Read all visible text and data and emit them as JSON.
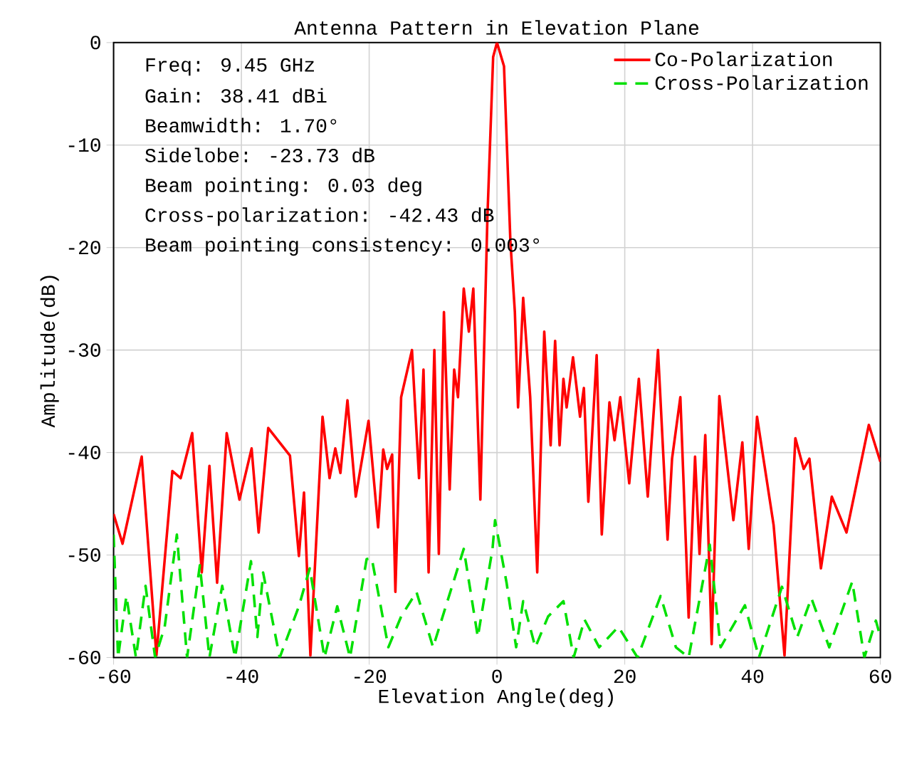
{
  "chart_data": {
    "type": "line",
    "title": "Antenna Pattern in Elevation Plane",
    "xlabel": "Elevation Angle(deg)",
    "ylabel": "Amplitude(dB)",
    "annotations": [
      "Freq: 9.45 GHz",
      "Gain: 38.41 dBi",
      "Beamwidth: 1.70°",
      "Sidelobe: -23.73 dB",
      "Beam pointing: 0.03 deg",
      "Cross-polarization: -42.43 dB",
      "Beam pointing consistency: 0.003°"
    ],
    "xlim": [
      -60,
      60
    ],
    "ylim": [
      -60,
      0
    ],
    "xticks": [
      -60,
      -40,
      -20,
      0,
      20,
      40,
      60
    ],
    "yticks": [
      -60,
      -50,
      -40,
      -30,
      -20,
      -10,
      0
    ],
    "grid": true,
    "legend": "top right",
    "series": [
      {
        "name": "Co-Polarization",
        "color": "#ff0000",
        "line_style": "solid",
        "x": [
          -60,
          -58.6,
          -55.6,
          -53.3,
          -50.8,
          -49.5,
          -47.7,
          -46.2,
          -45.0,
          -43.8,
          -42.3,
          -40.3,
          -38.4,
          -37.3,
          -35.8,
          -32.4,
          -31.0,
          -30.2,
          -29.2,
          -27.3,
          -26.2,
          -25.3,
          -24.5,
          -23.4,
          -22.1,
          -20.1,
          -18.6,
          -17.8,
          -17.2,
          -16.4,
          -15.9,
          -15.0,
          -13.3,
          -12.2,
          -11.5,
          -10.7,
          -9.8,
          -9.1,
          -8.3,
          -7.4,
          -6.7,
          -6.1,
          -5.2,
          -4.4,
          -3.7,
          -2.6,
          -1.5,
          -0.6,
          0.0,
          1.1,
          2.1,
          2.8,
          3.3,
          4.1,
          5.2,
          6.3,
          7.4,
          8.4,
          9.1,
          9.8,
          10.4,
          10.9,
          11.9,
          13.0,
          13.6,
          14.3,
          15.6,
          16.4,
          17.6,
          18.4,
          19.3,
          20.7,
          22.2,
          23.6,
          25.2,
          26.7,
          27.4,
          28.7,
          30.0,
          31.0,
          31.7,
          32.6,
          33.6,
          34.8,
          37.0,
          38.4,
          39.4,
          40.7,
          43.3,
          45.0,
          46.7,
          48.0,
          48.9,
          50.7,
          52.4,
          54.7,
          58.2,
          60
        ],
        "values": [
          -46,
          -48.9,
          -40.4,
          -59.8,
          -41.8,
          -42.5,
          -38.1,
          -51.7,
          -41.3,
          -52.7,
          -38.1,
          -44.6,
          -39.6,
          -47.8,
          -37.6,
          -40.3,
          -50.1,
          -43.9,
          -59.8,
          -36.5,
          -42.5,
          -39.6,
          -42,
          -34.9,
          -44.3,
          -36.9,
          -47.3,
          -39.7,
          -41.6,
          -40.2,
          -53.6,
          -34.6,
          -30,
          -42.5,
          -31.9,
          -51.7,
          -30,
          -49.9,
          -26.3,
          -43.6,
          -31.9,
          -34.6,
          -24,
          -28.2,
          -24,
          -44.6,
          -17.1,
          -1.4,
          0,
          -2.3,
          -19.4,
          -26.3,
          -35.6,
          -24.9,
          -34.6,
          -51.7,
          -28.2,
          -39.3,
          -29.1,
          -39.3,
          -32.8,
          -35.6,
          -30.7,
          -36.5,
          -33.7,
          -44.8,
          -30.5,
          -48,
          -35.1,
          -38.8,
          -34.6,
          -43,
          -32.8,
          -44.3,
          -30,
          -48.5,
          -40.6,
          -34.6,
          -56.1,
          -40.4,
          -49.9,
          -38.3,
          -58.7,
          -34.5,
          -46.6,
          -39,
          -49.4,
          -36.5,
          -47.1,
          -59.8,
          -38.6,
          -41.6,
          -40.6,
          -51.3,
          -44.3,
          -47.8,
          -37.3,
          -40.9
        ]
      },
      {
        "name": "Cross-Polarization",
        "color": "#00e000",
        "line_style": "dashed",
        "x": [
          -60,
          -59.3,
          -58,
          -56.5,
          -55,
          -53.5,
          -52,
          -50.1,
          -48.5,
          -46.5,
          -45,
          -43,
          -41,
          -38.5,
          -37.5,
          -36.6,
          -34,
          -31,
          -29.3,
          -27,
          -25,
          -23,
          -20.4,
          -19.6,
          -17,
          -15,
          -12.6,
          -10,
          -8,
          -5.2,
          -3,
          -0.7,
          -0.3,
          1.5,
          3,
          4.1,
          6,
          8,
          10.4,
          12,
          13.7,
          16,
          19,
          22,
          25.6,
          28,
          30,
          33.3,
          35,
          38.8,
          41,
          44.6,
          47,
          49.2,
          52,
          55.6,
          57.5,
          59.3,
          60
        ],
        "values": [
          -48,
          -60,
          -54,
          -60,
          -53,
          -60,
          -57,
          -48,
          -60,
          -51,
          -60,
          -53,
          -60,
          -50.6,
          -58,
          -51.7,
          -60,
          -55,
          -51.3,
          -60,
          -55,
          -60,
          -50.4,
          -50.3,
          -59,
          -56,
          -53.6,
          -59,
          -55,
          -49.4,
          -58,
          -49.4,
          -46.6,
          -52.7,
          -59,
          -54.5,
          -59,
          -56,
          -54.5,
          -60,
          -56.3,
          -59,
          -57,
          -60,
          -54,
          -59,
          -60,
          -49,
          -59,
          -54.9,
          -60,
          -53.1,
          -58,
          -54.2,
          -59,
          -52.6,
          -60,
          -56.4,
          -58
        ]
      }
    ]
  }
}
